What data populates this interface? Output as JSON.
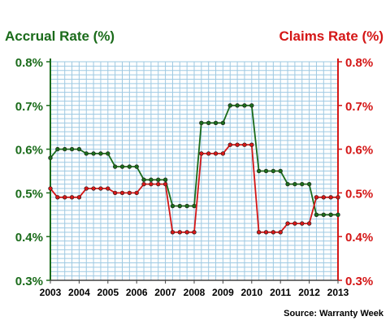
{
  "chart_data": {
    "type": "line",
    "left_axis_title": "Accrual Rate (%)",
    "right_axis_title": "Claims Rate (%)",
    "source": "Source: Warranty Week",
    "x_tick_labels": [
      "2003",
      "2004",
      "2005",
      "2006",
      "2007",
      "2008",
      "2009",
      "2010",
      "2011",
      "2012",
      "2013"
    ],
    "y_tick_labels": [
      "0.3%",
      "0.4%",
      "0.5%",
      "0.6%",
      "0.7%",
      "0.8%"
    ],
    "ylim": [
      0.3,
      0.8
    ],
    "xlim": [
      2003,
      2013
    ],
    "grid": true,
    "colors": {
      "accrual": "#1a6b1a",
      "claims": "#d41616",
      "grid": "#9ec9e2"
    },
    "series": [
      {
        "key": "accrual",
        "x": [
          2003.0,
          2003.25,
          2003.5,
          2003.75,
          2004.0,
          2004.25,
          2004.5,
          2004.75,
          2005.0,
          2005.25,
          2005.5,
          2005.75,
          2006.0,
          2006.25,
          2006.5,
          2006.75,
          2007.0,
          2007.25,
          2007.5,
          2007.75,
          2008.0,
          2008.25,
          2008.5,
          2008.75,
          2009.0,
          2009.25,
          2009.5,
          2009.75,
          2010.0,
          2010.25,
          2010.5,
          2010.75,
          2011.0,
          2011.25,
          2011.5,
          2011.75,
          2012.0,
          2012.25,
          2012.5,
          2012.75,
          2013.0
        ],
        "values": [
          0.58,
          0.6,
          0.6,
          0.6,
          0.6,
          0.59,
          0.59,
          0.59,
          0.59,
          0.56,
          0.56,
          0.56,
          0.56,
          0.53,
          0.53,
          0.53,
          0.53,
          0.47,
          0.47,
          0.47,
          0.47,
          0.66,
          0.66,
          0.66,
          0.66,
          0.7,
          0.7,
          0.7,
          0.7,
          0.55,
          0.55,
          0.55,
          0.55,
          0.52,
          0.52,
          0.52,
          0.52,
          0.45,
          0.45,
          0.45,
          0.45
        ]
      },
      {
        "key": "claims",
        "x": [
          2003.0,
          2003.25,
          2003.5,
          2003.75,
          2004.0,
          2004.25,
          2004.5,
          2004.75,
          2005.0,
          2005.25,
          2005.5,
          2005.75,
          2006.0,
          2006.25,
          2006.5,
          2006.75,
          2007.0,
          2007.25,
          2007.5,
          2007.75,
          2008.0,
          2008.25,
          2008.5,
          2008.75,
          2009.0,
          2009.25,
          2009.5,
          2009.75,
          2010.0,
          2010.25,
          2010.5,
          2010.75,
          2011.0,
          2011.25,
          2011.5,
          2011.75,
          2012.0,
          2012.25,
          2012.5,
          2012.75,
          2013.0
        ],
        "values": [
          0.51,
          0.49,
          0.49,
          0.49,
          0.49,
          0.51,
          0.51,
          0.51,
          0.51,
          0.5,
          0.5,
          0.5,
          0.5,
          0.52,
          0.52,
          0.52,
          0.52,
          0.41,
          0.41,
          0.41,
          0.41,
          0.59,
          0.59,
          0.59,
          0.59,
          0.61,
          0.61,
          0.61,
          0.61,
          0.41,
          0.41,
          0.41,
          0.41,
          0.43,
          0.43,
          0.43,
          0.43,
          0.49,
          0.49,
          0.49,
          0.49
        ]
      }
    ]
  }
}
